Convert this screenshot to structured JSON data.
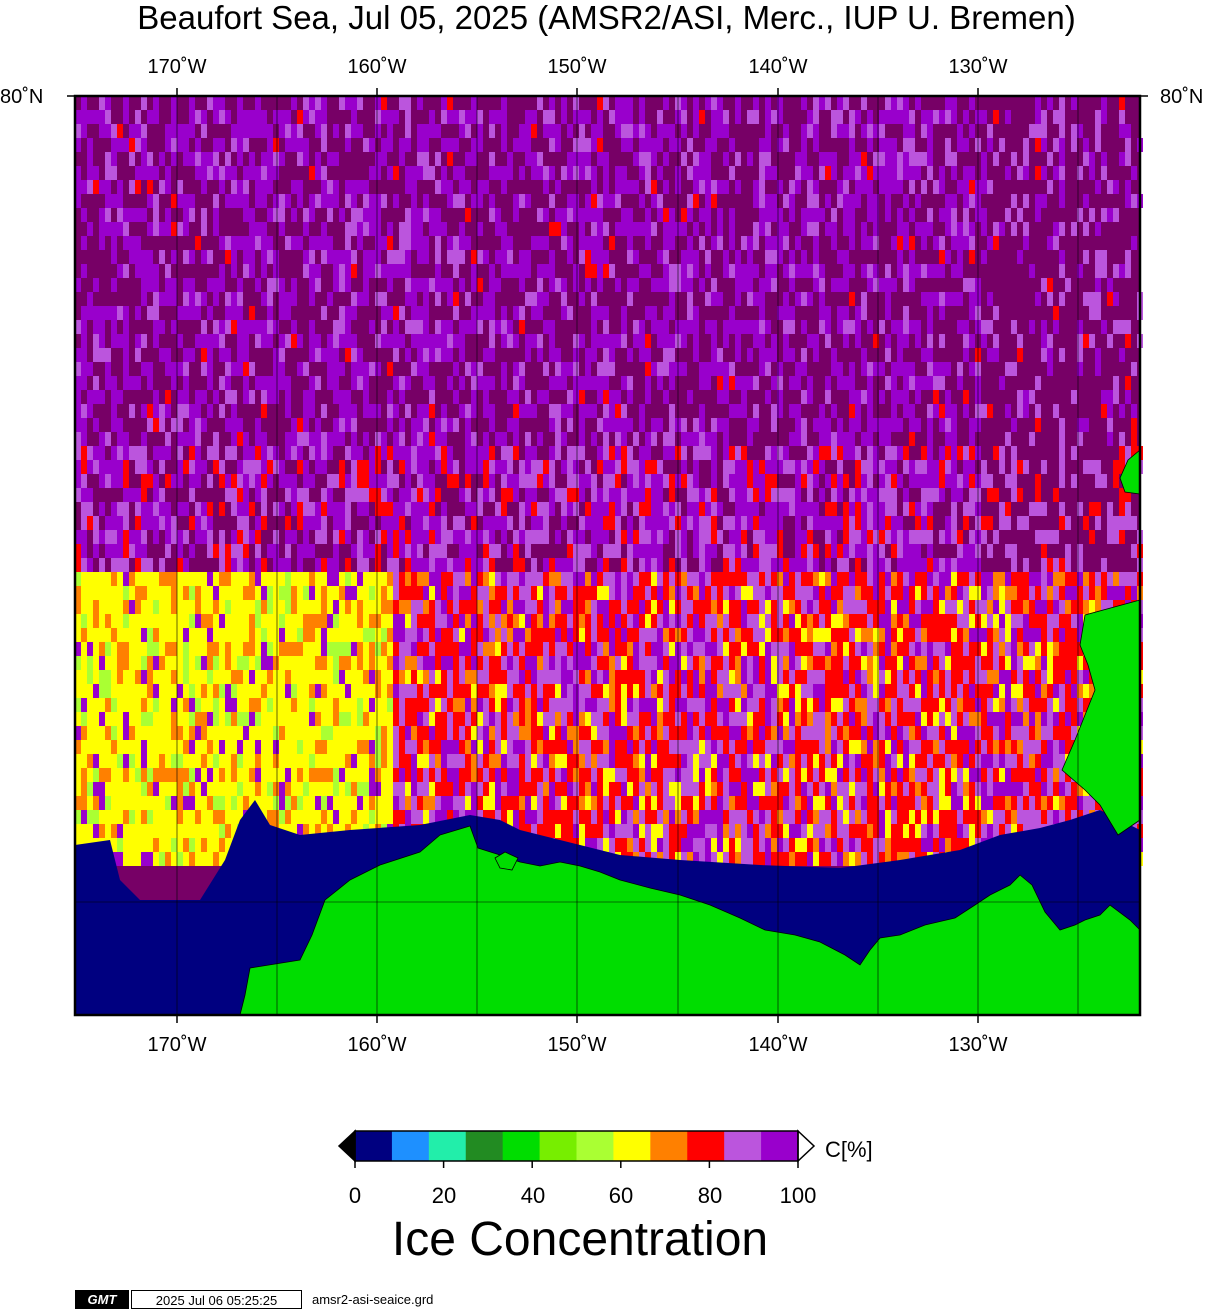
{
  "title": "Beaufort Sea, Jul 05, 2025 (AMSR2/ASI, Merc., IUP U. Bremen)",
  "lon_labels": [
    "170˚W",
    "160˚W",
    "150˚W",
    "140˚W",
    "130˚W"
  ],
  "lat_label": "80˚N",
  "colorbar": {
    "ticks": [
      "0",
      "20",
      "40",
      "60",
      "80",
      "100"
    ],
    "unit": "C[%]",
    "title": "Ice Concentration",
    "colors": [
      "#000080",
      "#1e90ff",
      "#22eeaa",
      "#228b22",
      "#00dd00",
      "#77ee00",
      "#aaff33",
      "#ffff00",
      "#ff8000",
      "#ff0000",
      "#bb55dd",
      "#9900cc"
    ],
    "below_color": "#000000",
    "above_color": "#ffffff"
  },
  "palette": {
    "land": "#00dd00",
    "water": "#000080",
    "ice_full": "#770066"
  },
  "footer": {
    "logo": "GMT",
    "timestamp": "2025 Jul 06 05:25:25",
    "filename": "amsr2-asi-seaice.grd"
  }
}
